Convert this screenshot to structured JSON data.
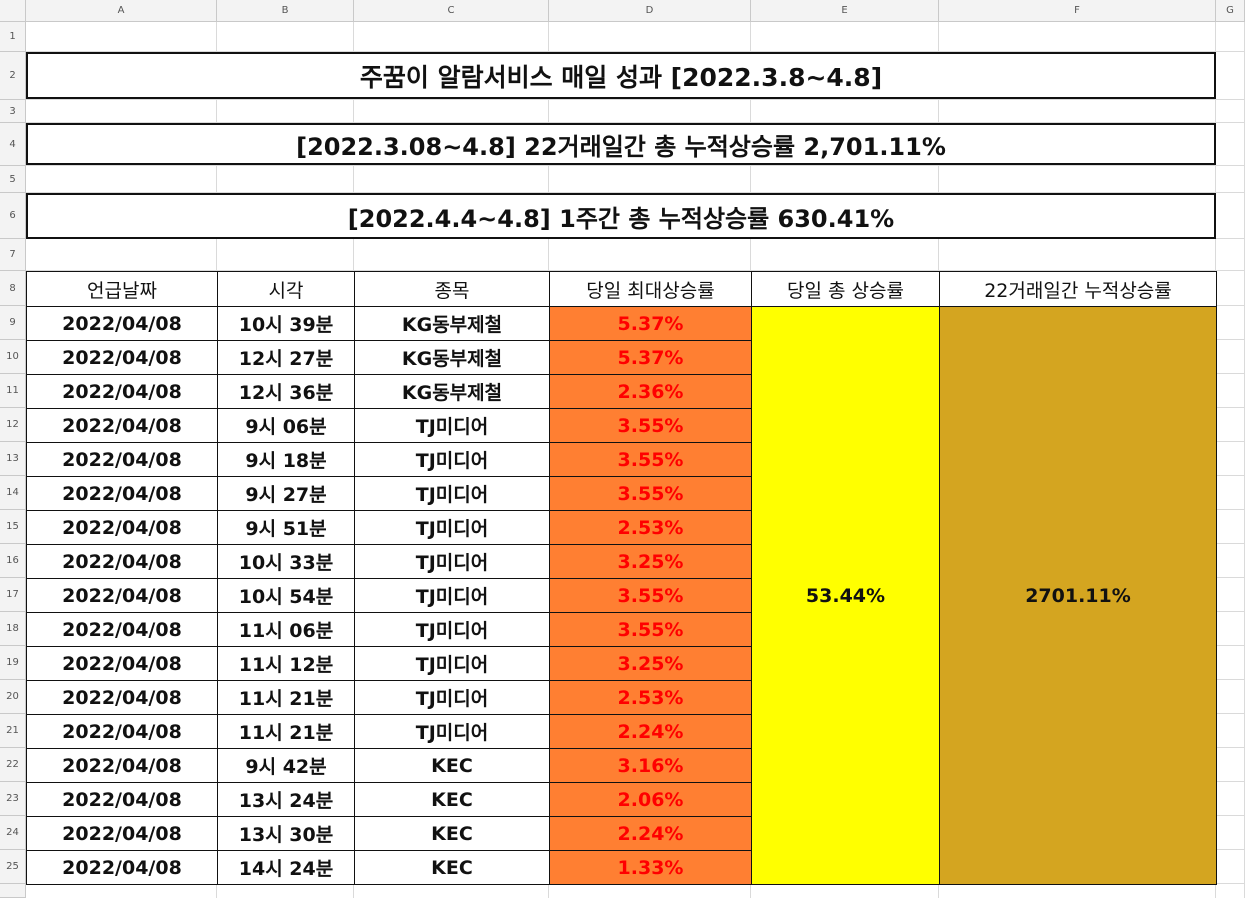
{
  "columns": [
    "A",
    "B",
    "C",
    "D",
    "E",
    "F",
    "G"
  ],
  "row_numbers": [
    "1",
    "2",
    "3",
    "4",
    "5",
    "6",
    "7",
    "8",
    "9",
    "10",
    "11",
    "12",
    "13",
    "14",
    "15",
    "16",
    "17",
    "18",
    "19",
    "20",
    "21",
    "22",
    "23",
    "24",
    "25"
  ],
  "title": "주꿈이 알람서비스 매일 성과 [2022.3.8~4.8]",
  "banner_cumulative": "[2022.3.08~4.8] 22거래일간 총 누적상승률 2,701.11%",
  "banner_week": "[2022.4.4~4.8] 1주간 총 누적상승률 630.41%",
  "headers": [
    "언급날짜",
    "시각",
    "종목",
    "당일 최대상승률",
    "당일 총 상승률",
    "22거래일간 누적상승률"
  ],
  "rows": [
    {
      "date": "2022/04/08",
      "time": "10시 39분",
      "stock": "KG동부제철",
      "max": "5.37%"
    },
    {
      "date": "2022/04/08",
      "time": "12시 27분",
      "stock": "KG동부제철",
      "max": "5.37%"
    },
    {
      "date": "2022/04/08",
      "time": "12시 36분",
      "stock": "KG동부제철",
      "max": "2.36%"
    },
    {
      "date": "2022/04/08",
      "time": "9시 06분",
      "stock": "TJ미디어",
      "max": "3.55%"
    },
    {
      "date": "2022/04/08",
      "time": "9시 18분",
      "stock": "TJ미디어",
      "max": "3.55%"
    },
    {
      "date": "2022/04/08",
      "time": "9시 27분",
      "stock": "TJ미디어",
      "max": "3.55%"
    },
    {
      "date": "2022/04/08",
      "time": "9시 51분",
      "stock": "TJ미디어",
      "max": "2.53%"
    },
    {
      "date": "2022/04/08",
      "time": "10시 33분",
      "stock": "TJ미디어",
      "max": "3.25%"
    },
    {
      "date": "2022/04/08",
      "time": "10시 54분",
      "stock": "TJ미디어",
      "max": "3.55%"
    },
    {
      "date": "2022/04/08",
      "time": "11시 06분",
      "stock": "TJ미디어",
      "max": "3.55%"
    },
    {
      "date": "2022/04/08",
      "time": "11시 12분",
      "stock": "TJ미디어",
      "max": "3.25%"
    },
    {
      "date": "2022/04/08",
      "time": "11시 21분",
      "stock": "TJ미디어",
      "max": "2.53%"
    },
    {
      "date": "2022/04/08",
      "time": "11시 21분",
      "stock": "TJ미디어",
      "max": "2.24%"
    },
    {
      "date": "2022/04/08",
      "time": "9시 42분",
      "stock": "KEC",
      "max": "3.16%"
    },
    {
      "date": "2022/04/08",
      "time": "13시 24분",
      "stock": "KEC",
      "max": "2.06%"
    },
    {
      "date": "2022/04/08",
      "time": "13시 30분",
      "stock": "KEC",
      "max": "2.24%"
    },
    {
      "date": "2022/04/08",
      "time": "14시 24분",
      "stock": "KEC",
      "max": "1.33%"
    }
  ],
  "daily_total": "53.44%",
  "cumulative_total": "2701.11%",
  "colors": {
    "max_fill": "#ff7f32",
    "max_text": "#ff0000",
    "daily_fill": "#ffff00",
    "cumulative_fill": "#d4a520"
  }
}
